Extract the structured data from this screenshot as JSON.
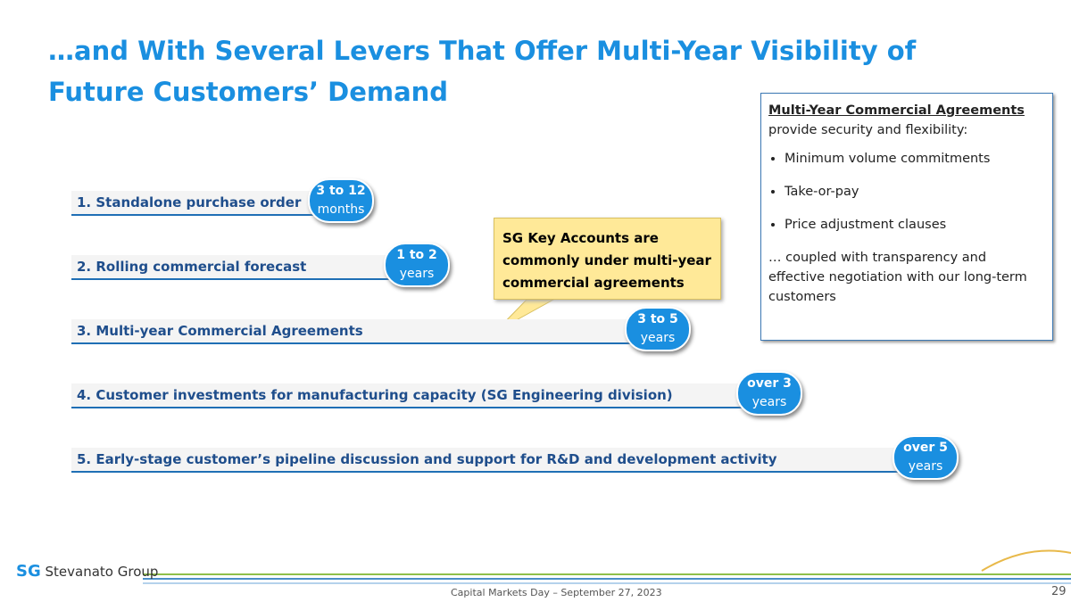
{
  "title": "…and With Several Levers That Offer Multi-Year Visibility of Future Customers’ Demand",
  "levers": [
    {
      "label": "1. Standalone  purchase  order",
      "badge_top": "3 to 12",
      "badge_bottom": "months"
    },
    {
      "label": "2. Rolling commercial  forecast",
      "badge_top": "1 to 2",
      "badge_bottom": "years"
    },
    {
      "label": "3. Multi-year  Commercial  Agreements",
      "badge_top": "3 to 5",
      "badge_bottom": "years"
    },
    {
      "label": "4. Customer  investments for manufacturing  capacity (SG Engineering division)",
      "badge_top": "over 3",
      "badge_bottom": "years"
    },
    {
      "label": "5. Early-stage  customer’s pipeline discussion  and support  for R&D and development activity",
      "badge_top": "over 5",
      "badge_bottom": "years"
    }
  ],
  "callout": "SG Key Accounts are commonly under multi-year commercial  agreements",
  "info_box": {
    "heading": "Multi-Year Commercial Agreements",
    "intro": " provide security and flexibility:",
    "bullets": [
      "Minimum volume commitments",
      "Take-or-pay",
      "Price adjustment clauses"
    ],
    "closing": "… coupled with transparency and effective negotiation with our long-term customers"
  },
  "footer": {
    "logo": "Stevanato Group",
    "logo_mark": "SG",
    "event": "Capital Markets Day – September  27, 2023",
    "page": "29"
  }
}
